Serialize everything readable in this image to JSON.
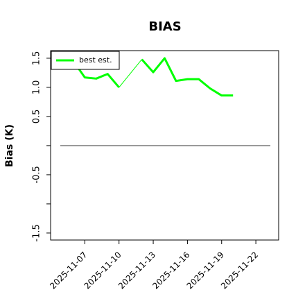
{
  "chart_data": {
    "type": "line",
    "title": "BIAS",
    "ylabel": "Bias (K)",
    "x": [
      "2025-11-06",
      "2025-11-07",
      "2025-11-08",
      "2025-11-09",
      "2025-11-10",
      "2025-11-11",
      "2025-11-12",
      "2025-11-13",
      "2025-11-14",
      "2025-11-15",
      "2025-11-16",
      "2025-11-17",
      "2025-11-18",
      "2025-11-19",
      "2025-11-20"
    ],
    "series": [
      {
        "name": "best est.",
        "color": "#00ff00",
        "values": [
          1.45,
          1.17,
          1.15,
          1.23,
          1.0,
          null,
          1.48,
          1.26,
          1.5,
          1.11,
          1.14,
          1.14,
          0.98,
          0.86,
          0.86
        ]
      }
    ],
    "xlim": [
      "2025-11-04",
      "2025-11-24"
    ],
    "xticks": [
      "2025-11-07",
      "2025-11-10",
      "2025-11-13",
      "2025-11-16",
      "2025-11-19",
      "2025-11-22"
    ],
    "ylim": [
      -1.62,
      1.63
    ],
    "yticks": [
      {
        "value": -1.5,
        "label": "-1.5"
      },
      {
        "value": -1,
        "label": null
      },
      {
        "value": -0.5,
        "label": "-0.5"
      },
      {
        "value": 0,
        "label": null
      },
      {
        "value": 0.5,
        "label": "0.5"
      },
      {
        "value": 1,
        "label": "1.0"
      },
      {
        "value": 1.5,
        "label": "1.5"
      }
    ],
    "hline": 0,
    "legend": "upper left",
    "grid": false
  }
}
